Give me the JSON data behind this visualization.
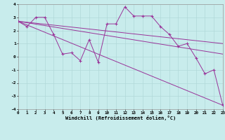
{
  "xlabel": "Windchill (Refroidissement éolien,°C)",
  "xlim": [
    0,
    23
  ],
  "ylim": [
    -4,
    4
  ],
  "xticks": [
    0,
    1,
    2,
    3,
    4,
    5,
    6,
    7,
    8,
    9,
    10,
    11,
    12,
    13,
    14,
    15,
    16,
    17,
    18,
    19,
    20,
    21,
    22,
    23
  ],
  "yticks": [
    -4,
    -3,
    -2,
    -1,
    0,
    1,
    2,
    3,
    4
  ],
  "background_color": "#c8ecec",
  "line_color": "#993399",
  "grid_color": "#b0d8d8",
  "line1_x": [
    0,
    23
  ],
  "line1_y": [
    2.7,
    -3.7
  ],
  "line2_x": [
    0,
    23
  ],
  "line2_y": [
    2.7,
    1.0
  ],
  "line3_x": [
    0,
    23
  ],
  "line3_y": [
    2.7,
    0.2
  ],
  "data_x": [
    0,
    1,
    2,
    3,
    4,
    5,
    6,
    7,
    8,
    9,
    10,
    11,
    12,
    13,
    14,
    15,
    16,
    17,
    18,
    19,
    20,
    21,
    22,
    23
  ],
  "data_y": [
    2.7,
    2.3,
    3.0,
    3.0,
    1.7,
    0.2,
    0.3,
    -0.3,
    1.3,
    -0.4,
    2.5,
    2.5,
    3.8,
    3.1,
    3.1,
    3.1,
    2.3,
    1.7,
    0.8,
    1.0,
    -0.1,
    -1.3,
    -1.0,
    -3.7
  ]
}
